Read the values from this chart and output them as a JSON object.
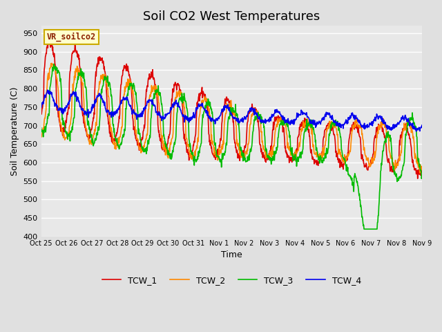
{
  "title": "Soil CO2 West Temperatures",
  "xlabel": "Time",
  "ylabel": "Soil Temperature (C)",
  "ylim": [
    400,
    970
  ],
  "yticks": [
    400,
    450,
    500,
    550,
    600,
    650,
    700,
    750,
    800,
    850,
    900,
    950
  ],
  "annotation_text": "VR_soilco2",
  "annotation_color": "#8B2000",
  "annotation_bg": "#FFFFCC",
  "annotation_edge": "#CCAA00",
  "series_colors": {
    "TCW_1": "#DD0000",
    "TCW_2": "#FF8800",
    "TCW_3": "#00BB00",
    "TCW_4": "#0000EE"
  },
  "tick_labels": [
    "Oct 25",
    "Oct 26",
    "Oct 27",
    "Oct 28",
    "Oct 29",
    "Oct 30",
    "Oct 31",
    "Nov 1",
    "Nov 2",
    "Nov 3",
    "Nov 4",
    "Nov 5",
    "Nov 6",
    "Nov 7",
    "Nov 8",
    "Nov 9"
  ],
  "n_days": 15,
  "n_per_day": 72,
  "fig_bg": "#E0E0E0",
  "ax_bg": "#E8E8E8",
  "grid_color": "#FFFFFF",
  "line_width": 1.2,
  "title_fontsize": 13,
  "axis_fontsize": 9,
  "tick_fontsize": 8
}
